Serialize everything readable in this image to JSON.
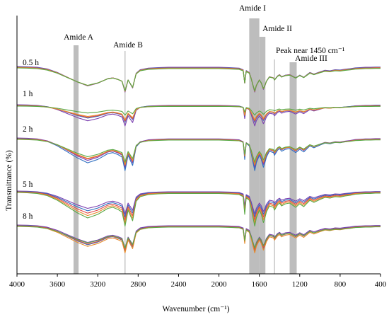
{
  "chart_data": {
    "type": "line",
    "title": "",
    "xlabel": "Wavenumber (cm⁻¹)",
    "ylabel": "Transmittance (%)",
    "xlim": [
      4000,
      400
    ],
    "x_reversed": true,
    "x_ticks": [
      4000,
      3600,
      3200,
      2800,
      2400,
      2000,
      1600,
      1200,
      800,
      400
    ],
    "y_ticks_shown": false,
    "grid": false,
    "band_regions": [
      {
        "label": "Amide A",
        "from": 3440,
        "to": 3390
      },
      {
        "label": "Amide B",
        "from": 2935,
        "to": 2925
      },
      {
        "label": "Amide I",
        "from": 1700,
        "to": 1600
      },
      {
        "label": "Amide II",
        "from": 1600,
        "to": 1540
      },
      {
        "label": "Peak near 1450 cm⁻¹",
        "from": 1455,
        "to": 1445
      },
      {
        "label": "Amide III",
        "from": 1300,
        "to": 1230
      }
    ],
    "series_colors": [
      "#7b3fb0",
      "#2e6fc0",
      "#e04848",
      "#e88a2a",
      "#5aa845"
    ],
    "spectrum_shape": {
      "x": [
        4000,
        3900,
        3800,
        3700,
        3600,
        3500,
        3400,
        3300,
        3200,
        3100,
        3050,
        3000,
        2960,
        2930,
        2900,
        2855,
        2820,
        2780,
        2700,
        2600,
        2500,
        2400,
        2300,
        2200,
        2100,
        2000,
        1900,
        1800,
        1760,
        1745,
        1730,
        1700,
        1680,
        1660,
        1645,
        1630,
        1600,
        1580,
        1560,
        1545,
        1530,
        1500,
        1460,
        1450,
        1420,
        1400,
        1380,
        1340,
        1300,
        1240,
        1200,
        1160,
        1100,
        1060,
        1000,
        950,
        900,
        850,
        800,
        750,
        700,
        650,
        600,
        550,
        500,
        450,
        400
      ],
      "depth": [
        0.0,
        0.01,
        0.03,
        0.09,
        0.22,
        0.4,
        0.58,
        0.72,
        0.62,
        0.45,
        0.42,
        0.48,
        0.55,
        0.95,
        0.5,
        0.8,
        0.25,
        0.12,
        0.06,
        0.04,
        0.03,
        0.03,
        0.03,
        0.03,
        0.03,
        0.03,
        0.04,
        0.06,
        0.12,
        0.62,
        0.15,
        0.22,
        0.45,
        0.75,
        0.95,
        0.72,
        0.5,
        0.62,
        0.85,
        0.72,
        0.55,
        0.38,
        0.42,
        0.5,
        0.35,
        0.3,
        0.38,
        0.32,
        0.3,
        0.42,
        0.32,
        0.4,
        0.22,
        0.28,
        0.2,
        0.14,
        0.16,
        0.12,
        0.13,
        0.1,
        0.08,
        0.05,
        0.04,
        0.03,
        0.03,
        0.02,
        0.02
      ]
    },
    "groups": [
      {
        "label": "0.5 h",
        "series_depth_scale": [
          1.0,
          0.97,
          0.95,
          0.92,
          0.9
        ],
        "series_offset": [
          0.0,
          0.5,
          1.0,
          1.5,
          2.0
        ]
      },
      {
        "label": "1 h",
        "series_depth_scale": [
          1.05,
          0.85,
          0.78,
          0.7,
          0.45
        ],
        "series_offset": [
          0.0,
          0.5,
          1.0,
          1.5,
          2.0
        ]
      },
      {
        "label": "2 h",
        "series_depth_scale": [
          1.1,
          1.2,
          1.0,
          0.95,
          0.85
        ],
        "series_offset": [
          0.0,
          0.5,
          1.0,
          1.5,
          2.0
        ]
      },
      {
        "label": "5 h",
        "series_depth_scale": [
          0.85,
          0.95,
          1.05,
          1.15,
          1.25
        ],
        "series_offset": [
          0.0,
          0.5,
          1.0,
          1.5,
          2.0
        ]
      },
      {
        "label": "8 h",
        "series_depth_scale": [
          0.9,
          1.0,
          0.95,
          1.05,
          0.85
        ],
        "series_offset": [
          0.0,
          0.5,
          1.0,
          1.5,
          2.0
        ]
      }
    ]
  }
}
